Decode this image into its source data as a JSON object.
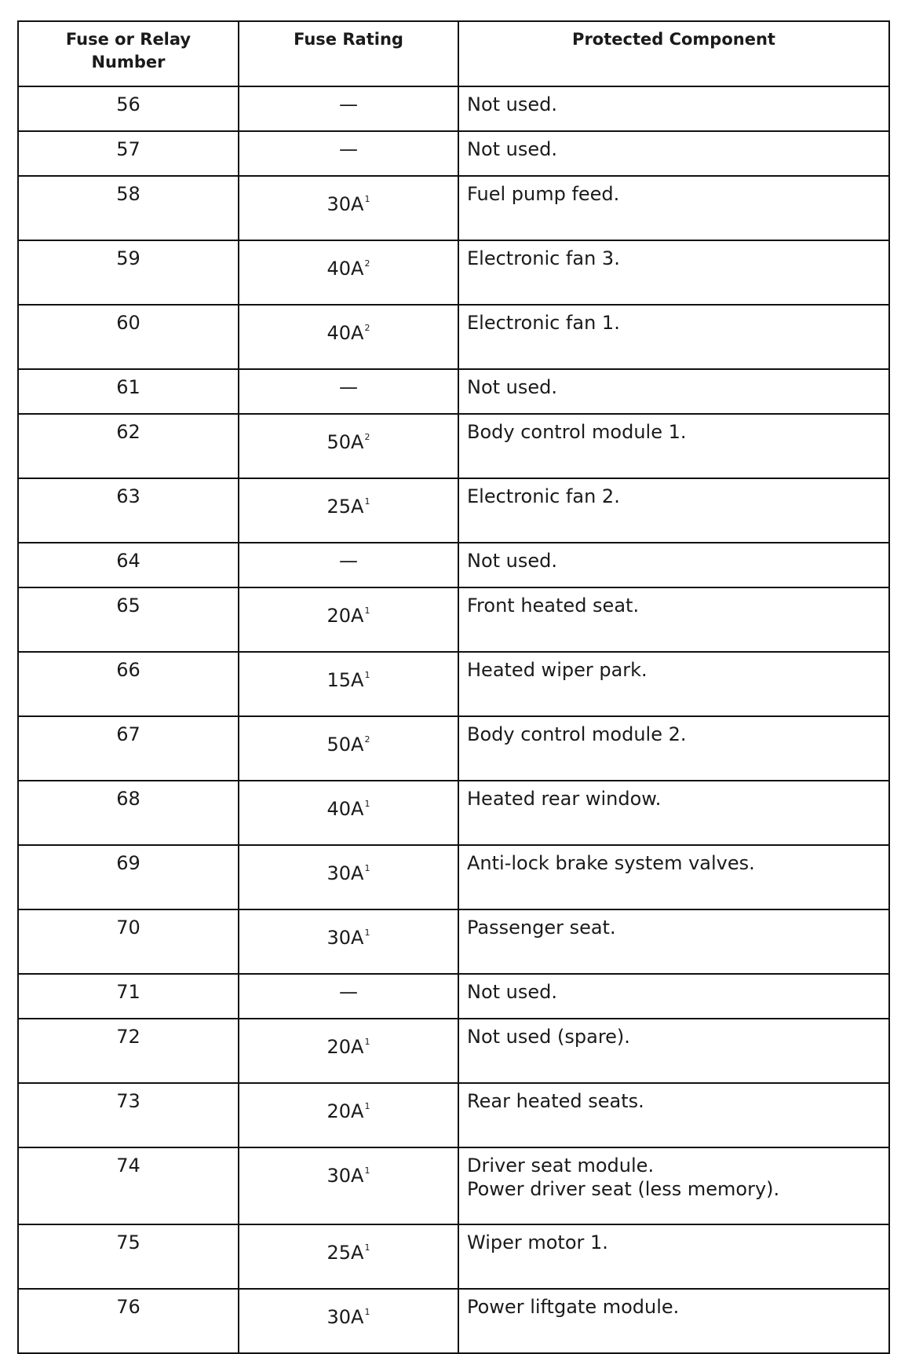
{
  "headers": [
    "Fuse or Relay Number",
    "Fuse Rating",
    "Protected Component"
  ],
  "rows": [
    {
      "number": "56",
      "rating": "—",
      "note": "",
      "component": [
        "Not used."
      ]
    },
    {
      "number": "57",
      "rating": "—",
      "note": "",
      "component": [
        "Not used."
      ]
    },
    {
      "number": "58",
      "rating": "30A",
      "note": "1",
      "component": [
        "Fuel pump feed."
      ]
    },
    {
      "number": "59",
      "rating": "40A",
      "note": "2",
      "component": [
        "Electronic fan 3."
      ]
    },
    {
      "number": "60",
      "rating": "40A",
      "note": "2",
      "component": [
        "Electronic fan 1."
      ]
    },
    {
      "number": "61",
      "rating": "—",
      "note": "",
      "component": [
        "Not used."
      ]
    },
    {
      "number": "62",
      "rating": "50A",
      "note": "2",
      "component": [
        "Body control module 1."
      ]
    },
    {
      "number": "63",
      "rating": "25A",
      "note": "1",
      "component": [
        "Electronic fan 2."
      ]
    },
    {
      "number": "64",
      "rating": "—",
      "note": "",
      "component": [
        "Not used."
      ]
    },
    {
      "number": "65",
      "rating": "20A",
      "note": "1",
      "component": [
        "Front heated seat."
      ]
    },
    {
      "number": "66",
      "rating": "15A",
      "note": "1",
      "component": [
        "Heated wiper park."
      ]
    },
    {
      "number": "67",
      "rating": "50A",
      "note": "2",
      "component": [
        "Body control module 2."
      ]
    },
    {
      "number": "68",
      "rating": "40A",
      "note": "1",
      "component": [
        "Heated rear window."
      ]
    },
    {
      "number": "69",
      "rating": "30A",
      "note": "1",
      "component": [
        "Anti-lock brake system valves."
      ]
    },
    {
      "number": "70",
      "rating": "30A",
      "note": "1",
      "component": [
        "Passenger seat."
      ]
    },
    {
      "number": "71",
      "rating": "—",
      "note": "",
      "component": [
        "Not used."
      ]
    },
    {
      "number": "72",
      "rating": "20A",
      "note": "1",
      "component": [
        "Not used (spare)."
      ]
    },
    {
      "number": "73",
      "rating": "20A",
      "note": "1",
      "component": [
        "Rear heated seats."
      ]
    },
    {
      "number": "74",
      "rating": "30A",
      "note": "1",
      "component": [
        "Driver seat module.",
        "Power driver seat (less memory)."
      ]
    },
    {
      "number": "75",
      "rating": "25A",
      "note": "1",
      "component": [
        "Wiper motor 1."
      ]
    },
    {
      "number": "76",
      "rating": "30A",
      "note": "1",
      "component": [
        "Power liftgate module."
      ]
    }
  ]
}
